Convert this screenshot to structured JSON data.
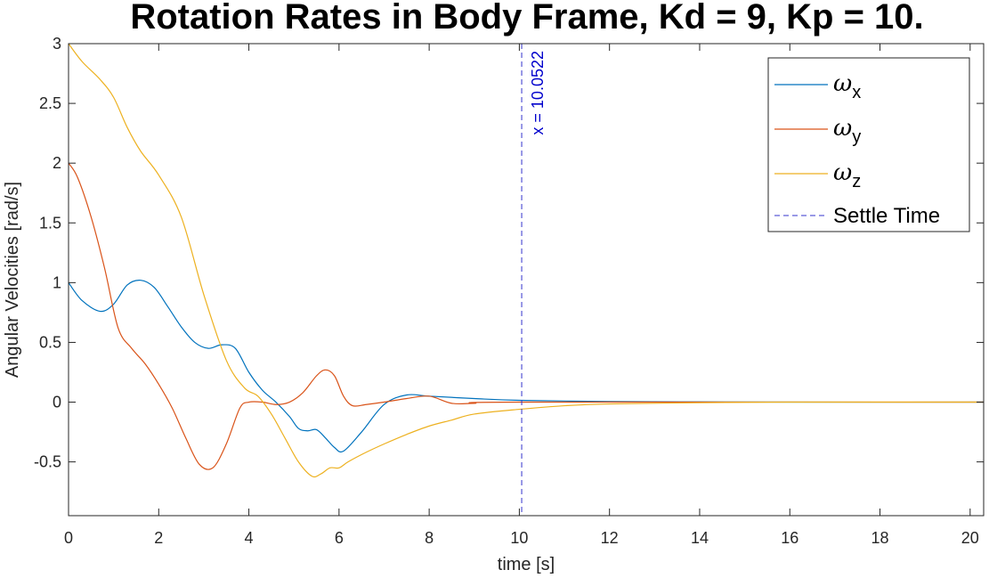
{
  "chart_data": {
    "type": "line",
    "title": "Rotation Rates in Body Frame, Kd = 9, Kp = 10.",
    "xlabel": "time [s]",
    "ylabel": "Angular Velocities  [rad/s]",
    "xlim": [
      0,
      20.3
    ],
    "ylim": [
      -0.95,
      3
    ],
    "xticks": [
      "0",
      "2",
      "4",
      "6",
      "8",
      "10",
      "12",
      "14",
      "16",
      "18",
      "20"
    ],
    "yticks": [
      "-0.5",
      "0",
      "0.5",
      "1",
      "1.5",
      "2",
      "2.5",
      "3"
    ],
    "grid": false,
    "legend_position": "top-right",
    "series": [
      {
        "name": "ωx",
        "symbol": "ω",
        "subscript": "x",
        "color": "#0072BD",
        "x": [
          0,
          0.3,
          0.7,
          1.0,
          1.3,
          1.6,
          1.9,
          2.2,
          2.5,
          2.8,
          3.1,
          3.4,
          3.7,
          4.0,
          4.3,
          4.6,
          4.9,
          5.1,
          5.3,
          5.5,
          5.7,
          5.9,
          6.1,
          6.5,
          7.0,
          7.5,
          8.0,
          9.0,
          10.0,
          12.0,
          14.0,
          16.0,
          20.3
        ],
        "y": [
          1.0,
          0.85,
          0.76,
          0.82,
          0.98,
          1.02,
          0.96,
          0.8,
          0.63,
          0.5,
          0.45,
          0.48,
          0.45,
          0.25,
          0.1,
          0.0,
          -0.12,
          -0.22,
          -0.24,
          -0.23,
          -0.3,
          -0.38,
          -0.41,
          -0.25,
          -0.02,
          0.06,
          0.05,
          0.03,
          0.015,
          0.005,
          0.002,
          0.0,
          0.0
        ]
      },
      {
        "name": "ωy",
        "symbol": "ω",
        "subscript": "y",
        "color": "#D95319",
        "x": [
          0,
          0.2,
          0.5,
          0.8,
          1.1,
          1.4,
          1.7,
          2.0,
          2.3,
          2.6,
          2.9,
          3.2,
          3.5,
          3.8,
          4.0,
          4.3,
          4.6,
          4.9,
          5.2,
          5.5,
          5.7,
          5.9,
          6.1,
          6.3,
          6.6,
          7.0,
          7.5,
          8.0,
          8.5,
          9.0,
          10.0,
          20.3
        ],
        "y": [
          2.0,
          1.88,
          1.55,
          1.12,
          0.62,
          0.45,
          0.32,
          0.15,
          -0.05,
          -0.3,
          -0.52,
          -0.55,
          -0.35,
          -0.05,
          0.0,
          0.0,
          -0.02,
          0.0,
          0.08,
          0.22,
          0.27,
          0.22,
          0.05,
          -0.03,
          -0.02,
          0.0,
          0.03,
          0.05,
          -0.01,
          -0.01,
          0.0,
          0.0
        ]
      },
      {
        "name": "ωz",
        "symbol": "ω",
        "subscript": "z",
        "color": "#EDB120",
        "x": [
          0,
          0.3,
          0.7,
          1.0,
          1.3,
          1.6,
          2.0,
          2.5,
          3.0,
          3.5,
          3.9,
          4.2,
          4.5,
          4.8,
          5.1,
          5.4,
          5.6,
          5.8,
          6.0,
          6.2,
          6.6,
          7.0,
          7.5,
          8.0,
          8.5,
          9.0,
          10.0,
          11.0,
          12.0,
          14.0,
          16.0,
          20.3
        ],
        "y": [
          3.0,
          2.85,
          2.7,
          2.55,
          2.3,
          2.1,
          1.9,
          1.55,
          0.9,
          0.35,
          0.12,
          0.05,
          -0.1,
          -0.3,
          -0.5,
          -0.62,
          -0.6,
          -0.55,
          -0.55,
          -0.5,
          -0.42,
          -0.35,
          -0.27,
          -0.2,
          -0.15,
          -0.1,
          -0.06,
          -0.03,
          -0.015,
          -0.005,
          0.0,
          0.0
        ]
      }
    ],
    "settle": {
      "name": "Settle Time",
      "x": 10.0522,
      "label": "x = 10.0522",
      "color": "#3333CC",
      "label_color": "#0000CC"
    }
  }
}
